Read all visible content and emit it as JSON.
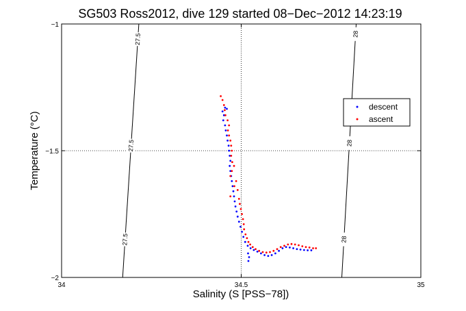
{
  "chart_data": {
    "type": "scatter",
    "title": "SG503 Ross2012, dive 129 started 08−Dec−2012 14:23:19",
    "xlabel": "Salinity (S [PSS−78])",
    "ylabel": "Temperature (°C)",
    "xlim": [
      34,
      35
    ],
    "ylim": [
      -2,
      -1
    ],
    "xticks": [
      34,
      34.5,
      35
    ],
    "xtick_labels": [
      "34",
      "34.5",
      "35"
    ],
    "yticks": [
      -1,
      -1.5,
      -2
    ],
    "ytick_labels": [
      "−1",
      "−1.5",
      "−2"
    ],
    "grid": "dotted",
    "legend_position": "right",
    "series": [
      {
        "name": "descent",
        "color": "#0000ff",
        "points": [
          [
            34.455,
            -1.33
          ],
          [
            34.46,
            -1.335
          ],
          [
            34.448,
            -1.345
          ],
          [
            34.452,
            -1.36
          ],
          [
            34.45,
            -1.38
          ],
          [
            34.455,
            -1.4
          ],
          [
            34.457,
            -1.42
          ],
          [
            34.46,
            -1.44
          ],
          [
            34.462,
            -1.46
          ],
          [
            34.465,
            -1.48
          ],
          [
            34.466,
            -1.5
          ],
          [
            34.468,
            -1.52
          ],
          [
            34.47,
            -1.54
          ],
          [
            34.468,
            -1.56
          ],
          [
            34.47,
            -1.58
          ],
          [
            34.472,
            -1.6
          ],
          [
            34.474,
            -1.62
          ],
          [
            34.476,
            -1.64
          ],
          [
            34.478,
            -1.66
          ],
          [
            34.48,
            -1.68
          ],
          [
            34.482,
            -1.7
          ],
          [
            34.484,
            -1.72
          ],
          [
            34.487,
            -1.74
          ],
          [
            34.49,
            -1.76
          ],
          [
            34.494,
            -1.78
          ],
          [
            34.498,
            -1.8
          ],
          [
            34.502,
            -1.82
          ],
          [
            34.506,
            -1.84
          ],
          [
            34.511,
            -1.86
          ],
          [
            34.518,
            -1.875
          ],
          [
            34.526,
            -1.885
          ],
          [
            34.535,
            -1.892
          ],
          [
            34.545,
            -1.898
          ],
          [
            34.555,
            -1.905
          ],
          [
            34.565,
            -1.912
          ],
          [
            34.575,
            -1.915
          ],
          [
            34.585,
            -1.912
          ],
          [
            34.595,
            -1.905
          ],
          [
            34.605,
            -1.895
          ],
          [
            34.615,
            -1.885
          ],
          [
            34.625,
            -1.88
          ],
          [
            34.635,
            -1.882
          ],
          [
            34.645,
            -1.885
          ],
          [
            34.655,
            -1.888
          ],
          [
            34.665,
            -1.89
          ],
          [
            34.675,
            -1.892
          ],
          [
            34.685,
            -1.893
          ],
          [
            34.695,
            -1.893
          ],
          [
            34.52,
            -1.935
          ],
          [
            34.522,
            -1.92
          ],
          [
            34.519,
            -1.905
          ]
        ]
      },
      {
        "name": "ascent",
        "color": "#ff0000",
        "points": [
          [
            34.443,
            -1.285
          ],
          [
            34.448,
            -1.3
          ],
          [
            34.452,
            -1.32
          ],
          [
            34.454,
            -1.34
          ],
          [
            34.456,
            -1.36
          ],
          [
            34.462,
            -1.38
          ],
          [
            34.466,
            -1.4
          ],
          [
            34.463,
            -1.42
          ],
          [
            34.466,
            -1.44
          ],
          [
            34.47,
            -1.46
          ],
          [
            34.472,
            -1.48
          ],
          [
            34.474,
            -1.5
          ],
          [
            34.472,
            -1.52
          ],
          [
            34.475,
            -1.545
          ],
          [
            34.48,
            -1.56
          ],
          [
            34.474,
            -1.58
          ],
          [
            34.47,
            -1.6
          ],
          [
            34.486,
            -1.62
          ],
          [
            34.481,
            -1.64
          ],
          [
            34.49,
            -1.655
          ],
          [
            34.47,
            -1.68
          ],
          [
            34.494,
            -1.69
          ],
          [
            34.496,
            -1.71
          ],
          [
            34.499,
            -1.73
          ],
          [
            34.502,
            -1.75
          ],
          [
            34.505,
            -1.77
          ],
          [
            34.507,
            -1.79
          ],
          [
            34.508,
            -1.81
          ],
          [
            34.512,
            -1.83
          ],
          [
            34.516,
            -1.845
          ],
          [
            34.52,
            -1.86
          ],
          [
            34.525,
            -1.87
          ],
          [
            34.532,
            -1.88
          ],
          [
            34.54,
            -1.888
          ],
          [
            34.55,
            -1.895
          ],
          [
            34.56,
            -1.9
          ],
          [
            34.57,
            -1.902
          ],
          [
            34.58,
            -1.9
          ],
          [
            34.59,
            -1.895
          ],
          [
            34.6,
            -1.888
          ],
          [
            34.61,
            -1.88
          ],
          [
            34.62,
            -1.875
          ],
          [
            34.63,
            -1.87
          ],
          [
            34.64,
            -1.868
          ],
          [
            34.65,
            -1.87
          ],
          [
            34.66,
            -1.873
          ],
          [
            34.67,
            -1.877
          ],
          [
            34.68,
            -1.88
          ],
          [
            34.69,
            -1.882
          ],
          [
            34.7,
            -1.885
          ],
          [
            34.708,
            -1.885
          ]
        ]
      }
    ],
    "isopycnals": [
      {
        "label": "27.5",
        "x_top": 34.215,
        "x_bottom": 34.17,
        "label_y": [
          -1.06,
          -1.48,
          -1.85
        ]
      },
      {
        "label": "28",
        "x_top": 34.82,
        "x_bottom": 34.78,
        "label_y": [
          -1.04,
          -1.47,
          -1.85
        ]
      }
    ]
  }
}
